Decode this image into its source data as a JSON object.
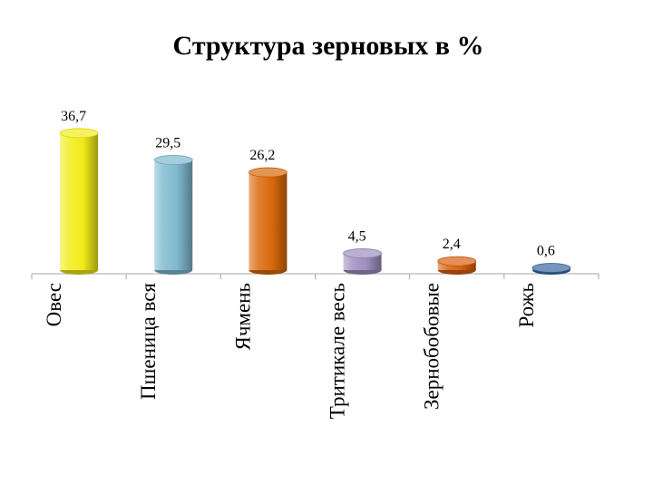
{
  "chart_data": {
    "type": "bar",
    "title": "Структура зерновых в %",
    "xlabel": "",
    "ylabel": "",
    "ylim": [
      0,
      40
    ],
    "grid": false,
    "legend": "none",
    "categories": [
      "Овес",
      "Пшеница вся",
      "Ячмень",
      "Тритикале весь",
      "Зернобобовые",
      "Рожь"
    ],
    "values": [
      36.7,
      29.5,
      26.2,
      4.5,
      2.4,
      0.6
    ],
    "value_labels": [
      "36,7",
      "29,5",
      "26,2",
      "4,5",
      "2,4",
      "0,6"
    ],
    "colors": [
      "#f2ec1a",
      "#7fb9cf",
      "#d96a0a",
      "#9d8fbe",
      "#d86010",
      "#3a68a0"
    ]
  }
}
